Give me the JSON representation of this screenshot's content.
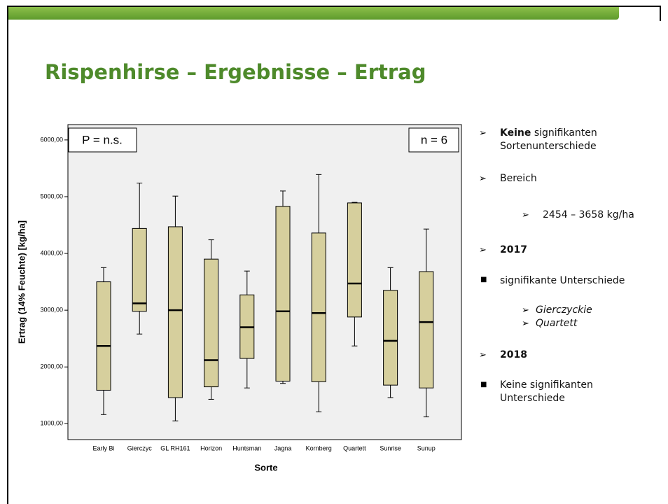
{
  "title": "Rispenhirse – Ergebnisse – Ertrag",
  "bullets": {
    "b0_bold": "Keine",
    "b0_text": "signifikanten Sortenunterschiede",
    "b1": "Bereich",
    "b2": "2454 – 3658 kg/ha",
    "b3": "2017",
    "b4": "signifikante Unterschiede",
    "b5": "Gierczyckie",
    "b6": "Quartett",
    "b7": "2018",
    "b8": "Keine signifikanten Unterschiede"
  },
  "chart_data": {
    "type": "box",
    "xlabel": "Sorte",
    "ylabel": "Ertrag (14% Feuchte) [kg/ha]",
    "annotations": [
      "P = n.s.",
      "n = 6"
    ],
    "categories": [
      "Early Bi",
      "Gierczyc",
      "GL RH161",
      "Horizon",
      "Huntsman",
      "Jagna",
      "Kornberg",
      "Quartett",
      "Sunrise",
      "Sunup"
    ],
    "min": [
      1160,
      2580,
      1050,
      1430,
      1630,
      1710,
      1210,
      2370,
      1460,
      1120
    ],
    "q1": [
      1590,
      2980,
      1460,
      1650,
      2150,
      1750,
      1740,
      2880,
      1680,
      1630
    ],
    "median": [
      2370,
      3120,
      3000,
      2120,
      2700,
      2980,
      2950,
      3470,
      2460,
      2790
    ],
    "q3": [
      3500,
      4440,
      4470,
      3900,
      3270,
      4830,
      4360,
      4890,
      3350,
      3680
    ],
    "max": [
      3750,
      5240,
      5010,
      4240,
      3690,
      5100,
      5390,
      4900,
      3750,
      4430
    ],
    "color": "#d6cf9d",
    "ylim": [
      720,
      6270
    ],
    "yticks": [
      {
        "value": 1000,
        "label": "1000,00"
      },
      {
        "value": 2000,
        "label": "2000,00"
      },
      {
        "value": 3000,
        "label": "3000,00"
      },
      {
        "value": 4000,
        "label": "4000,00"
      },
      {
        "value": 5000,
        "label": "5000,00"
      },
      {
        "value": 6000,
        "label": "6000,00"
      }
    ]
  }
}
